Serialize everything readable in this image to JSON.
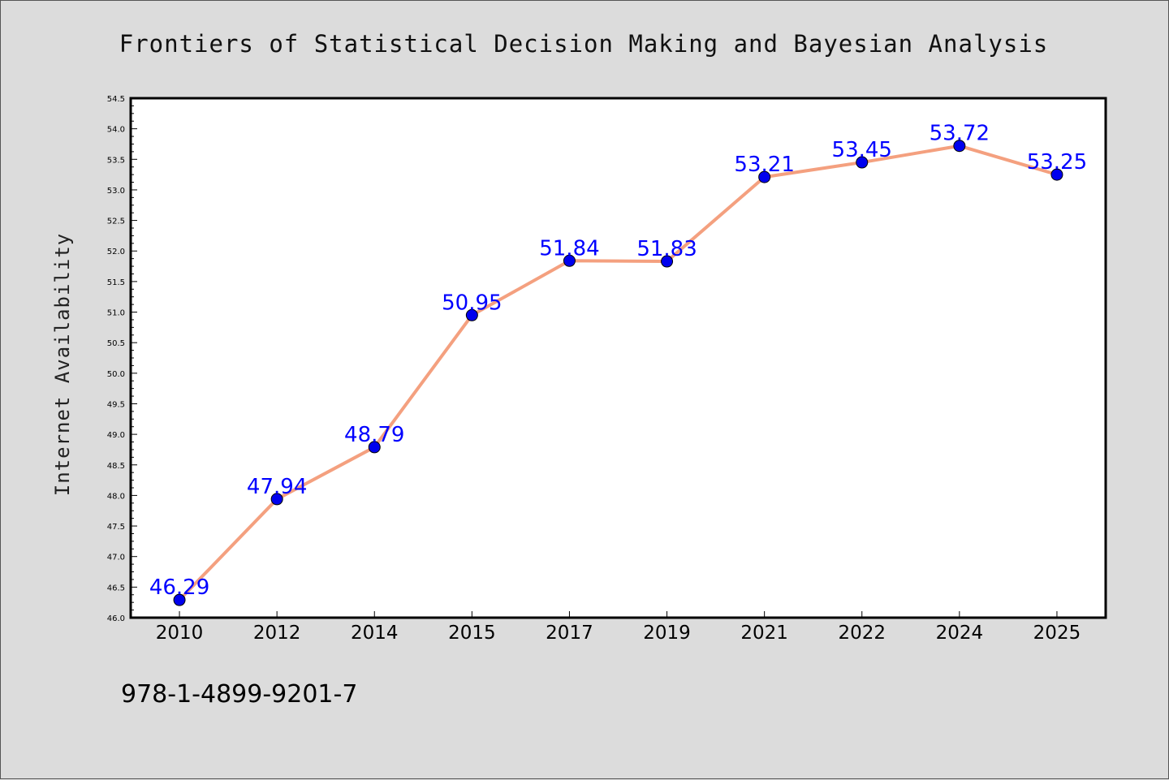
{
  "chart_data": {
    "type": "line",
    "title": "Frontiers of Statistical Decision Making and Bayesian Analysis",
    "xlabel": "",
    "ylabel": "Internet Availability",
    "categories": [
      "2010",
      "2012",
      "2014",
      "2015",
      "2017",
      "2019",
      "2021",
      "2022",
      "2024",
      "2025"
    ],
    "series": [
      {
        "values": [
          46.29,
          47.94,
          48.79,
          50.95,
          51.84,
          51.83,
          53.21,
          53.45,
          53.72,
          53.25
        ],
        "data_labels": [
          "46.29",
          "47.94",
          "48.79",
          "50.95",
          "51.84",
          "51.83",
          "53.21",
          "53.45",
          "53.72",
          "53.25"
        ],
        "line_color": "#f4a07f",
        "marker_color": "#0000ee"
      }
    ],
    "ylim": [
      46.0,
      54.5
    ],
    "yticks": [
      "46.0",
      "46.5",
      "47.0",
      "47.5",
      "48.0",
      "48.5",
      "49.0",
      "49.5",
      "50.0",
      "50.5",
      "51.0",
      "51.5",
      "52.0",
      "52.5",
      "53.0",
      "53.5",
      "54.0",
      "54.5"
    ],
    "grid": false,
    "legend": "none"
  },
  "footer": {
    "isbn": "978-1-4899-9201-7"
  }
}
